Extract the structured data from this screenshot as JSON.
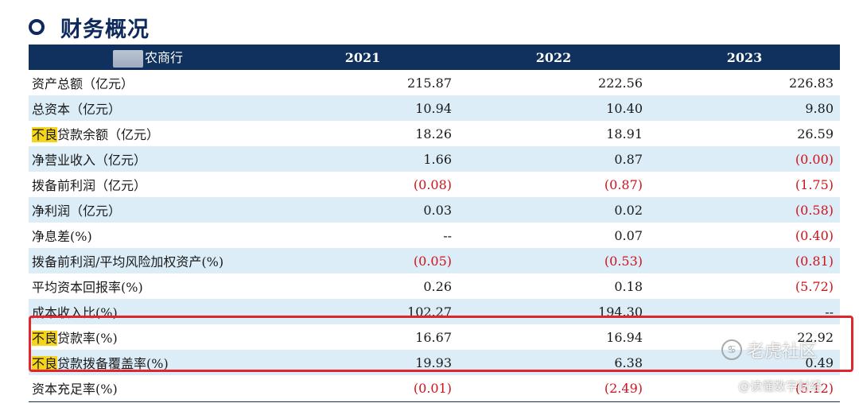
{
  "section": {
    "title": "财务概况"
  },
  "table": {
    "header": {
      "bank_name": "农商行",
      "years": [
        "2021",
        "2022",
        "2023"
      ]
    },
    "rows": [
      {
        "label": "资产总额（亿元）",
        "values": [
          "215.87",
          "222.56",
          "226.83"
        ],
        "neg": [
          false,
          false,
          false
        ]
      },
      {
        "label": "总资本（亿元）",
        "values": [
          "10.94",
          "10.40",
          "9.80"
        ],
        "neg": [
          false,
          false,
          false
        ]
      },
      {
        "label_hl": "不良",
        "label_rest": "贷款余额（亿元）",
        "values": [
          "18.26",
          "18.91",
          "26.59"
        ],
        "neg": [
          false,
          false,
          false
        ]
      },
      {
        "label": "净营业收入（亿元）",
        "values": [
          "1.66",
          "0.87",
          "(0.00)"
        ],
        "neg": [
          false,
          false,
          true
        ]
      },
      {
        "label": "拨备前利润（亿元）",
        "values": [
          "(0.08)",
          "(0.87)",
          "(1.75)"
        ],
        "neg": [
          true,
          true,
          true
        ]
      },
      {
        "label": "净利润（亿元）",
        "values": [
          "0.03",
          "0.02",
          "(0.58)"
        ],
        "neg": [
          false,
          false,
          true
        ]
      },
      {
        "label": "净息差(%)",
        "values": [
          "--",
          "0.07",
          "(0.40)"
        ],
        "neg": [
          false,
          false,
          true
        ]
      },
      {
        "label": "拨备前利润/平均风险加权资产(%)",
        "values": [
          "(0.05)",
          "(0.53)",
          "(0.81)"
        ],
        "neg": [
          true,
          true,
          true
        ]
      },
      {
        "label": "平均资本回报率(%)",
        "values": [
          "0.26",
          "0.18",
          "(5.72)"
        ],
        "neg": [
          false,
          false,
          true
        ]
      },
      {
        "label": "成本收入比(%)",
        "values": [
          "102.27",
          "194.30",
          "--"
        ],
        "neg": [
          false,
          false,
          false
        ]
      },
      {
        "label_hl": "不良",
        "label_rest": "贷款率(%)",
        "values": [
          "16.67",
          "16.94",
          "22.92"
        ],
        "neg": [
          false,
          false,
          false
        ]
      },
      {
        "label_hl": "不良",
        "label_rest": "贷款拨备覆盖率(%)",
        "values": [
          "19.93",
          "6.38",
          "0.49"
        ],
        "neg": [
          false,
          false,
          false
        ]
      },
      {
        "label": "资本充足率(%)",
        "values": [
          "(0.01)",
          "(2.49)",
          "(5.12)"
        ],
        "neg": [
          true,
          true,
          true
        ]
      }
    ]
  },
  "watermark": {
    "logo_text": "老虎社区",
    "sub_text": "@读懂数字财经"
  },
  "colors": {
    "header_bg": "#10305e",
    "alt_row": "#dcedf8",
    "negative": "#d0121b",
    "highlight": "#f5d51a",
    "box": "#e0262c"
  }
}
